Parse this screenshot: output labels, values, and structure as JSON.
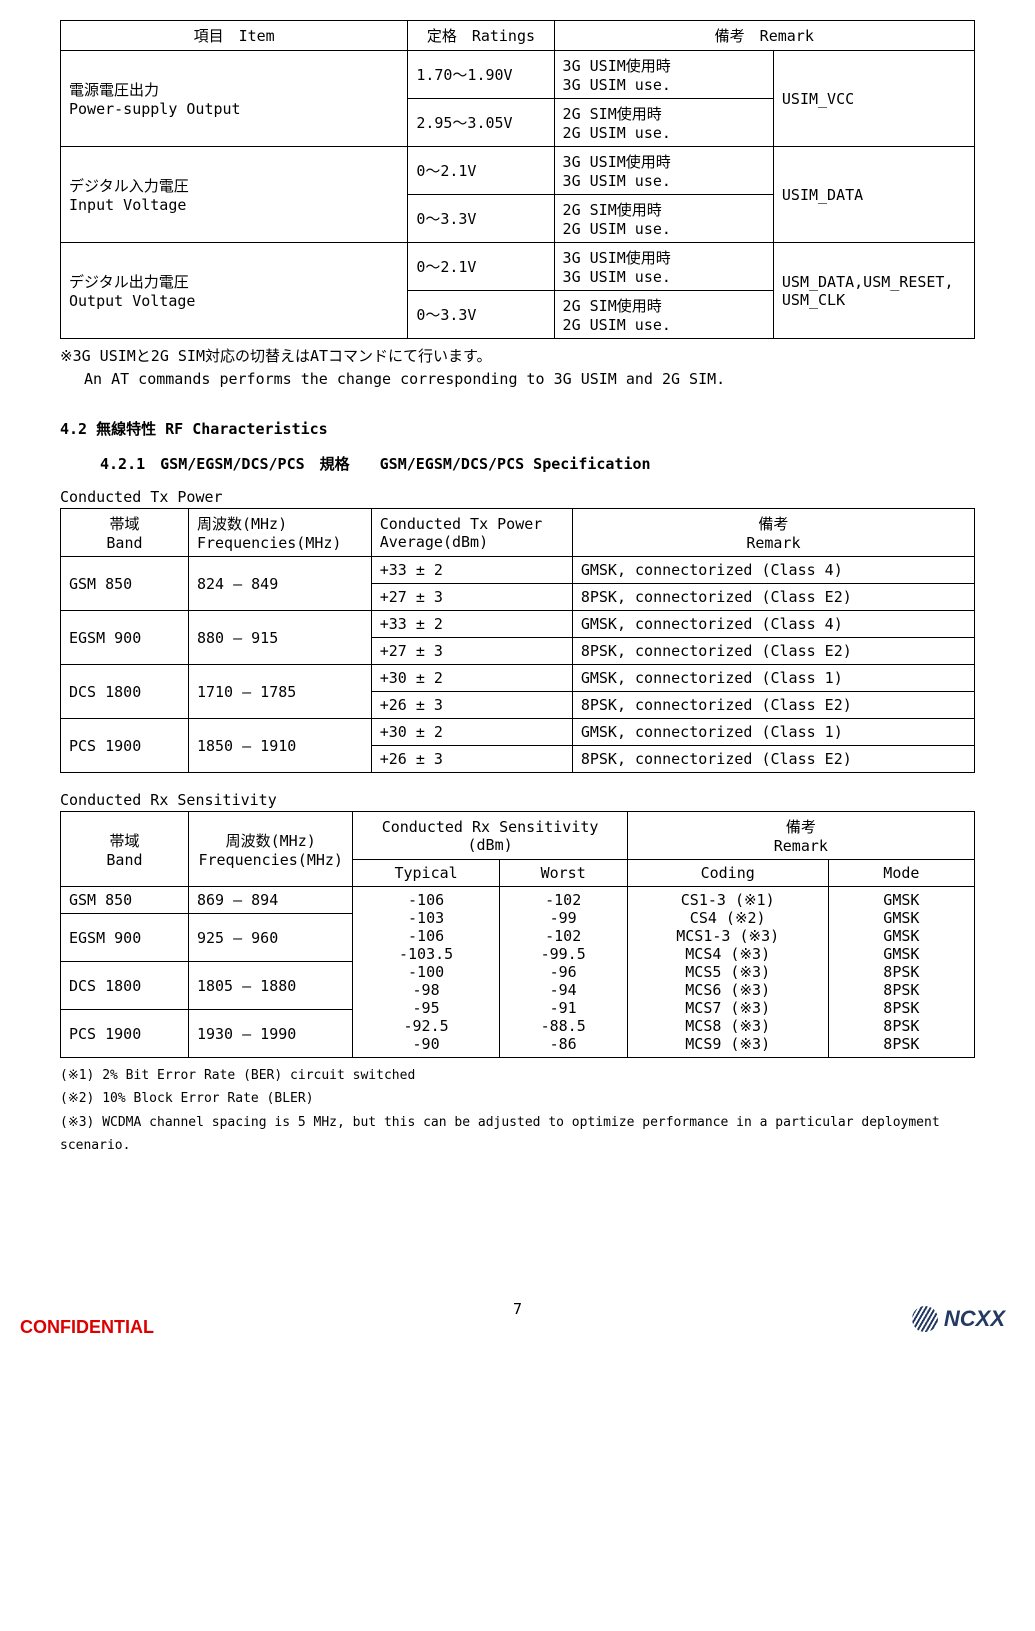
{
  "table1": {
    "headers": {
      "item": "項目　Item",
      "ratings": "定格　Ratings",
      "remark": "備考　Remark"
    },
    "rows": [
      {
        "item_jp": "電源電圧出力",
        "item_en": "Power-supply Output",
        "ratings": [
          "1.70～1.90V",
          "2.95～3.05V"
        ],
        "remarks": [
          "3G USIM使用時\n3G USIM use.",
          "2G SIM使用時\n2G USIM use."
        ],
        "pin": "USIM_VCC"
      },
      {
        "item_jp": "デジタル入力電圧",
        "item_en": "Input Voltage",
        "ratings": [
          "0～2.1V",
          "0～3.3V"
        ],
        "remarks": [
          "3G USIM使用時\n3G USIM use.",
          "2G SIM使用時\n2G USIM use."
        ],
        "pin": "USIM_DATA"
      },
      {
        "item_jp": "デジタル出力電圧",
        "item_en": "Output Voltage",
        "ratings": [
          "0～2.1V",
          "0～3.3V"
        ],
        "remarks": [
          "3G USIM使用時\n3G USIM use.",
          "2G SIM使用時\n2G USIM use."
        ],
        "pin": "USM_DATA,USM_RESET,\nUSM_CLK"
      }
    ],
    "note_jp": "※3G USIMと2G SIM対応の切替えはATコマンドにて行います。",
    "note_en": "An AT commands performs the change corresponding to 3G USIM and 2G SIM."
  },
  "section42": "4.2 無線特性  RF Characteristics",
  "section421": "4.2.1　GSM/EGSM/DCS/PCS　規格　　GSM/EGSM/DCS/PCS Specification",
  "table2": {
    "caption": "Conducted Tx Power",
    "headers": {
      "band_jp": "帯域",
      "band_en": "Band",
      "freq_jp": "周波数(MHz)",
      "freq_en": "Frequencies(MHz)",
      "pow": "Conducted Tx Power",
      "pow2": "Average(dBm)",
      "rem_jp": "備考",
      "rem_en": "Remark"
    },
    "rows": [
      {
        "band": "GSM 850",
        "freq": "824  –  849",
        "pow": [
          "+33 ± 2",
          "+27 ± 3"
        ],
        "rem": [
          "GMSK, connectorized (Class 4)",
          "8PSK, connectorized (Class E2)"
        ]
      },
      {
        "band": "EGSM 900",
        "freq": "880  –  915",
        "pow": [
          "+33 ± 2",
          "+27 ± 3"
        ],
        "rem": [
          "GMSK, connectorized (Class 4)",
          "8PSK, connectorized (Class E2)"
        ]
      },
      {
        "band": "DCS 1800",
        "freq": "1710 –  1785",
        "pow": [
          "+30 ± 2",
          "+26 ± 3"
        ],
        "rem": [
          "GMSK, connectorized (Class 1)",
          "8PSK, connectorized (Class E2)"
        ]
      },
      {
        "band": "PCS 1900",
        "freq": "1850 –  1910",
        "pow": [
          "+30 ± 2",
          "+26 ± 3"
        ],
        "rem": [
          "GMSK, connectorized (Class 1)",
          "8PSK, connectorized (Class E2)"
        ]
      }
    ]
  },
  "table3": {
    "caption": "Conducted Rx Sensitivity",
    "headers": {
      "band_jp": "帯域",
      "band_en": "Band",
      "freq_jp": "周波数(MHz)",
      "freq_en": "Frequencies(MHz)",
      "sens": "Conducted Rx Sensitivity (dBm)",
      "typ": "Typical",
      "worst": "Worst",
      "rem_jp": "備考",
      "rem_en": "Remark",
      "cod": "Coding",
      "mode": "Mode"
    },
    "bands": [
      {
        "band": "GSM 850",
        "freq": "869  –  894"
      },
      {
        "band": "EGSM 900",
        "freq": "925  –  960"
      },
      {
        "band": "DCS 1800",
        "freq": "1805 –  1880"
      },
      {
        "band": "PCS 1900",
        "freq": "1930 –  1990"
      }
    ],
    "datarows": [
      {
        "typ": "-106",
        "worst": "-102",
        "cod": "CS1-3 (※1)",
        "mode": "GMSK"
      },
      {
        "typ": "-103",
        "worst": "-99",
        "cod": "CS4 (※2)",
        "mode": "GMSK"
      },
      {
        "typ": "-106",
        "worst": "-102",
        "cod": "MCS1-3 (※3)",
        "mode": "GMSK"
      },
      {
        "typ": "-103.5",
        "worst": "-99.5",
        "cod": "MCS4 (※3)",
        "mode": "GMSK"
      },
      {
        "typ": "-100",
        "worst": "-96",
        "cod": "MCS5 (※3)",
        "mode": "8PSK"
      },
      {
        "typ": "-98",
        "worst": "-94",
        "cod": "MCS6 (※3)",
        "mode": "8PSK"
      },
      {
        "typ": "-95",
        "worst": "-91",
        "cod": "MCS7 (※3)",
        "mode": "8PSK"
      },
      {
        "typ": "-92.5",
        "worst": "-88.5",
        "cod": "MCS8 (※3)",
        "mode": "8PSK"
      },
      {
        "typ": "-90",
        "worst": "-86",
        "cod": "MCS9 (※3)",
        "mode": "8PSK"
      }
    ],
    "footnotes": [
      "(※1) 2% Bit Error Rate (BER) circuit switched",
      "(※2) 10% Block Error Rate (BLER)",
      "(※3) WCDMA channel spacing is 5 MHz, but this can be adjusted to optimize performance in a particular deployment scenario."
    ]
  },
  "footer": {
    "confidential": "CONFIDENTIAL",
    "page": "7",
    "brand": "NCXX"
  }
}
